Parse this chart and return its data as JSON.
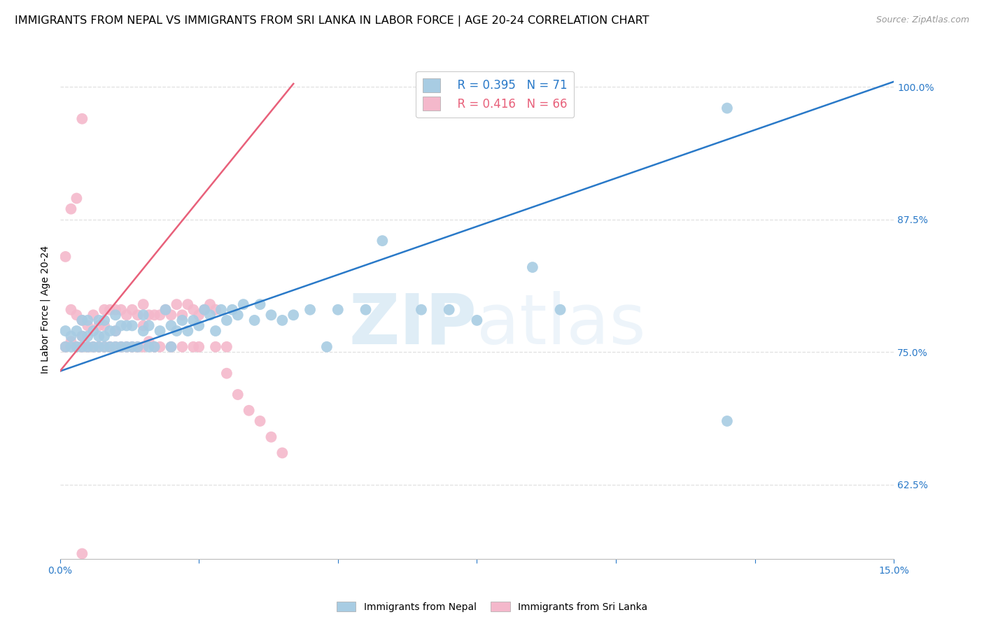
{
  "title": "IMMIGRANTS FROM NEPAL VS IMMIGRANTS FROM SRI LANKA IN LABOR FORCE | AGE 20-24 CORRELATION CHART",
  "source": "Source: ZipAtlas.com",
  "ylabel_label": "In Labor Force | Age 20-24",
  "x_min": 0.0,
  "x_max": 0.15,
  "y_min": 0.555,
  "y_max": 1.025,
  "x_ticks": [
    0.0,
    0.025,
    0.05,
    0.075,
    0.1,
    0.125,
    0.15
  ],
  "x_tick_labels": [
    "0.0%",
    "",
    "",
    "",
    "",
    "",
    "15.0%"
  ],
  "y_ticks": [
    0.625,
    0.75,
    0.875,
    1.0
  ],
  "y_tick_labels": [
    "62.5%",
    "75.0%",
    "87.5%",
    "100.0%"
  ],
  "nepal_color": "#a8cce3",
  "srilanka_color": "#f4b8cb",
  "nepal_line_color": "#2979c8",
  "srilanka_line_color": "#e8607a",
  "nepal_R": 0.395,
  "nepal_N": 71,
  "srilanka_R": 0.416,
  "srilanka_N": 66,
  "nepal_scatter_x": [
    0.001,
    0.001,
    0.002,
    0.002,
    0.003,
    0.003,
    0.004,
    0.004,
    0.004,
    0.005,
    0.005,
    0.005,
    0.006,
    0.006,
    0.007,
    0.007,
    0.007,
    0.008,
    0.008,
    0.008,
    0.009,
    0.009,
    0.01,
    0.01,
    0.01,
    0.011,
    0.011,
    0.012,
    0.012,
    0.013,
    0.013,
    0.014,
    0.015,
    0.015,
    0.016,
    0.016,
    0.017,
    0.018,
    0.019,
    0.02,
    0.02,
    0.021,
    0.022,
    0.023,
    0.024,
    0.025,
    0.026,
    0.027,
    0.028,
    0.029,
    0.03,
    0.031,
    0.032,
    0.033,
    0.035,
    0.036,
    0.038,
    0.04,
    0.042,
    0.045,
    0.048,
    0.05,
    0.055,
    0.058,
    0.065,
    0.07,
    0.075,
    0.085,
    0.09,
    0.12,
    0.12
  ],
  "nepal_scatter_y": [
    0.755,
    0.77,
    0.755,
    0.765,
    0.755,
    0.77,
    0.755,
    0.765,
    0.78,
    0.755,
    0.765,
    0.78,
    0.755,
    0.77,
    0.755,
    0.765,
    0.78,
    0.755,
    0.765,
    0.78,
    0.755,
    0.77,
    0.755,
    0.77,
    0.785,
    0.755,
    0.775,
    0.755,
    0.775,
    0.755,
    0.775,
    0.755,
    0.77,
    0.785,
    0.755,
    0.775,
    0.755,
    0.77,
    0.79,
    0.755,
    0.775,
    0.77,
    0.78,
    0.77,
    0.78,
    0.775,
    0.79,
    0.785,
    0.77,
    0.79,
    0.78,
    0.79,
    0.785,
    0.795,
    0.78,
    0.795,
    0.785,
    0.78,
    0.785,
    0.79,
    0.755,
    0.79,
    0.79,
    0.855,
    0.79,
    0.79,
    0.78,
    0.83,
    0.79,
    0.98,
    0.685
  ],
  "srilanka_scatter_x": [
    0.001,
    0.001,
    0.002,
    0.002,
    0.003,
    0.003,
    0.004,
    0.004,
    0.004,
    0.004,
    0.005,
    0.005,
    0.006,
    0.006,
    0.007,
    0.007,
    0.008,
    0.008,
    0.008,
    0.009,
    0.009,
    0.01,
    0.01,
    0.01,
    0.011,
    0.011,
    0.012,
    0.012,
    0.013,
    0.013,
    0.014,
    0.014,
    0.015,
    0.015,
    0.015,
    0.016,
    0.016,
    0.017,
    0.017,
    0.018,
    0.018,
    0.019,
    0.02,
    0.02,
    0.021,
    0.022,
    0.022,
    0.023,
    0.024,
    0.024,
    0.025,
    0.025,
    0.026,
    0.027,
    0.028,
    0.028,
    0.03,
    0.03,
    0.032,
    0.034,
    0.036,
    0.038,
    0.04,
    0.002,
    0.003,
    0.004
  ],
  "srilanka_scatter_y": [
    0.755,
    0.84,
    0.76,
    0.79,
    0.755,
    0.785,
    0.755,
    0.765,
    0.78,
    0.97,
    0.755,
    0.775,
    0.755,
    0.785,
    0.755,
    0.775,
    0.755,
    0.775,
    0.79,
    0.755,
    0.79,
    0.755,
    0.77,
    0.79,
    0.755,
    0.79,
    0.755,
    0.785,
    0.755,
    0.79,
    0.755,
    0.785,
    0.755,
    0.775,
    0.795,
    0.76,
    0.785,
    0.755,
    0.785,
    0.755,
    0.785,
    0.79,
    0.755,
    0.785,
    0.795,
    0.755,
    0.785,
    0.795,
    0.755,
    0.79,
    0.755,
    0.785,
    0.79,
    0.795,
    0.755,
    0.79,
    0.73,
    0.755,
    0.71,
    0.695,
    0.685,
    0.67,
    0.655,
    0.885,
    0.895,
    0.56
  ],
  "nepal_line_x0": 0.0,
  "nepal_line_x1": 0.15,
  "nepal_line_y0": 0.732,
  "nepal_line_y1": 1.005,
  "srilanka_line_x0": 0.0,
  "srilanka_line_x1": 0.042,
  "srilanka_line_y0": 0.732,
  "srilanka_line_y1": 1.003,
  "watermark_line1": "ZIP",
  "watermark_line2": "atlas",
  "background_color": "#ffffff",
  "grid_color": "#e0e0e0",
  "tick_color": "#2979c8",
  "title_fontsize": 11.5,
  "axis_label_fontsize": 10,
  "tick_fontsize": 10,
  "legend_fontsize": 12
}
